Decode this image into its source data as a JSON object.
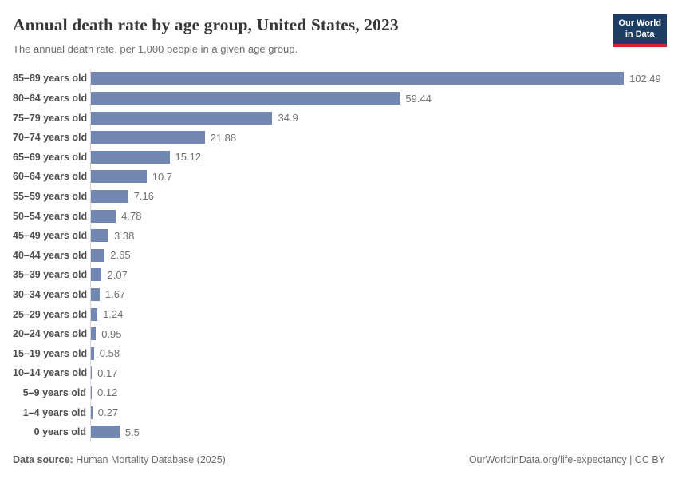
{
  "header": {
    "title": "Annual death rate by age group, United States, 2023",
    "subtitle": "The annual death rate, per 1,000 people in a given age group.",
    "logo": {
      "line1": "Our World",
      "line2": "in Data",
      "bg_color": "#1d3d63",
      "accent_color": "#cc2a29"
    }
  },
  "chart_data": {
    "type": "bar",
    "orientation": "horizontal",
    "title": "Annual death rate by age group, United States, 2023",
    "xlabel": "",
    "ylabel": "",
    "xlim": [
      0,
      110
    ],
    "grid": false,
    "legend": false,
    "bar_color": "#7288b3",
    "categories": [
      "85–89 years old",
      "80–84 years old",
      "75–79 years old",
      "70–74 years old",
      "65–69 years old",
      "60–64 years old",
      "55–59 years old",
      "50–54 years old",
      "45–49 years old",
      "40–44 years old",
      "35–39 years old",
      "30–34 years old",
      "25–29 years old",
      "20–24 years old",
      "15–19 years old",
      "10–14 years old",
      "5–9 years old",
      "1–4 years old",
      "0 years old"
    ],
    "values": [
      102.49,
      59.44,
      34.9,
      21.88,
      15.12,
      10.7,
      7.16,
      4.78,
      3.38,
      2.65,
      2.07,
      1.67,
      1.24,
      0.95,
      0.58,
      0.17,
      0.12,
      0.27,
      5.5
    ],
    "value_labels": [
      "102.49",
      "59.44",
      "34.9",
      "21.88",
      "15.12",
      "10.7",
      "7.16",
      "4.78",
      "3.38",
      "2.65",
      "2.07",
      "1.67",
      "1.24",
      "0.95",
      "0.58",
      "0.17",
      "0.12",
      "0.27",
      "5.5"
    ]
  },
  "footer": {
    "source_label": "Data source:",
    "source_text": "Human Mortality Database (2025)",
    "credit": "OurWorldinData.org/life-expectancy | CC BY"
  }
}
